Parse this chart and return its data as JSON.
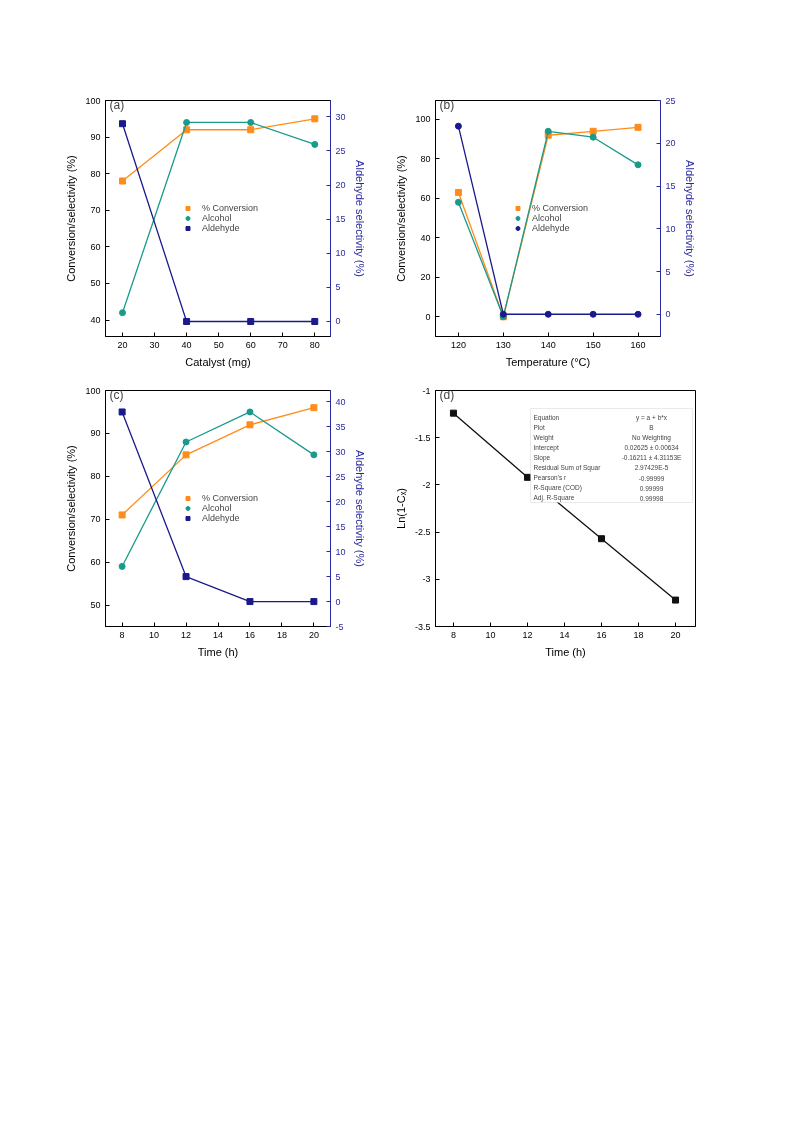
{
  "chart_data": [
    {
      "type": "line",
      "xlabel": "Catalyst (mg)",
      "ylabel": "Conversion/selectivity (%)",
      "y2label": "Aldehyde selectivity (%)",
      "annotations": [
        "(a)"
      ],
      "x": [
        20,
        40,
        60,
        80
      ],
      "xlim": [
        14.7,
        84.9
      ],
      "xticks": [
        20,
        30,
        40,
        50,
        60,
        70,
        80
      ],
      "ylim": [
        35.5,
        100
      ],
      "yticks": [
        40,
        50,
        60,
        70,
        80,
        90,
        100
      ],
      "y2lim": [
        -2.2,
        32.4
      ],
      "y2ticks": [
        0,
        5,
        10,
        15,
        20,
        25,
        30
      ],
      "grid": false,
      "legend": "center",
      "series": [
        {
          "name": "% Conversion",
          "color": "#ff8c1a",
          "marker": "square",
          "values": [
            78,
            92,
            92,
            95
          ]
        },
        {
          "name": "Alcohol",
          "color": "#1a9a8a",
          "marker": "circle",
          "values": [
            42,
            94,
            94,
            88
          ]
        },
        {
          "name": "Aldehyde",
          "color": "#1a1a8c",
          "marker": "square",
          "axis": "y2",
          "values": [
            29,
            0,
            0,
            0
          ]
        }
      ]
    },
    {
      "type": "line",
      "xlabel": "Temperature (°C)",
      "ylabel": "Conversion/selectivity (%)",
      "y2label": "Aldehyde selectivity (%)",
      "annotations": [
        "(b)"
      ],
      "x": [
        120,
        130,
        140,
        150,
        160
      ],
      "xlim": [
        114.9,
        165
      ],
      "xticks": [
        120,
        130,
        140,
        150,
        160
      ],
      "ylim": [
        -10,
        109.6
      ],
      "yticks": [
        0,
        20,
        40,
        60,
        80,
        100
      ],
      "y2lim": [
        -2.6,
        25
      ],
      "y2ticks": [
        0,
        5,
        10,
        15,
        20,
        25
      ],
      "grid": false,
      "legend": "center",
      "series": [
        {
          "name": "% Conversion",
          "color": "#ff8c1a",
          "marker": "square",
          "values": [
            63,
            0,
            92,
            94,
            96
          ]
        },
        {
          "name": "Alcohol",
          "color": "#1a9a8a",
          "marker": "circle",
          "values": [
            58,
            0,
            94,
            91,
            77
          ]
        },
        {
          "name": "Aldehyde",
          "color": "#1a1a8c",
          "marker": "circle",
          "axis": "y2",
          "values": [
            22,
            0,
            0,
            0,
            0
          ]
        }
      ]
    },
    {
      "type": "line",
      "xlabel": "Time (h)",
      "ylabel": "Conversion/selectivity (%)",
      "y2label": "Aldehyde selectivity (%)",
      "annotations": [
        "(c)"
      ],
      "x": [
        8,
        12,
        16,
        20
      ],
      "xlim": [
        6.96,
        21.04
      ],
      "xticks": [
        8,
        10,
        12,
        14,
        16,
        18,
        20
      ],
      "ylim": [
        45,
        100
      ],
      "yticks": [
        50,
        60,
        70,
        80,
        90,
        100
      ],
      "y2lim": [
        -5,
        42.3
      ],
      "y2ticks": [
        -5,
        0,
        5,
        10,
        15,
        20,
        25,
        30,
        35,
        40
      ],
      "grid": false,
      "legend": "center",
      "series": [
        {
          "name": "% Conversion",
          "color": "#ff8c1a",
          "marker": "square",
          "values": [
            71,
            85,
            92,
            96
          ]
        },
        {
          "name": "Alcohol",
          "color": "#1a9a8a",
          "marker": "circle",
          "values": [
            59,
            88,
            95,
            85
          ]
        },
        {
          "name": "Aldehyde",
          "color": "#1a1a8c",
          "marker": "square",
          "axis": "y2",
          "values": [
            38,
            5,
            0,
            0
          ]
        }
      ]
    },
    {
      "type": "line",
      "xlabel": "Time (h)",
      "ylabel": "Ln(1-Cₓ)",
      "annotations": [
        "(d)",
        "Equation",
        "y = a + b*x",
        "Plot",
        "B",
        "Weight",
        "No Weighting",
        "Intercept",
        "0.02625 ± 0.00634",
        "Slope",
        "-0.16211 ± 4.31153E",
        "Residual Sum of Squar",
        "2.97429E-5",
        "Pearson's r",
        "-0.99999",
        "R-Square (COD)",
        "0.99999",
        "Adj. R-Square",
        "0.99998"
      ],
      "x": [
        8,
        12,
        16,
        20
      ],
      "xlim": [
        7.03,
        21.08
      ],
      "xticks": [
        8,
        10,
        12,
        14,
        16,
        18,
        20
      ],
      "ylim": [
        -3.5,
        -1.0
      ],
      "yticks": [
        -3.5,
        -3.0,
        -2.5,
        -2.0,
        -1.5,
        -1.0
      ],
      "grid": false,
      "legend": false,
      "series": [
        {
          "color": "#111111",
          "marker": "square",
          "values": [
            -1.24,
            -1.92,
            -2.57,
            -3.22
          ]
        }
      ]
    }
  ]
}
